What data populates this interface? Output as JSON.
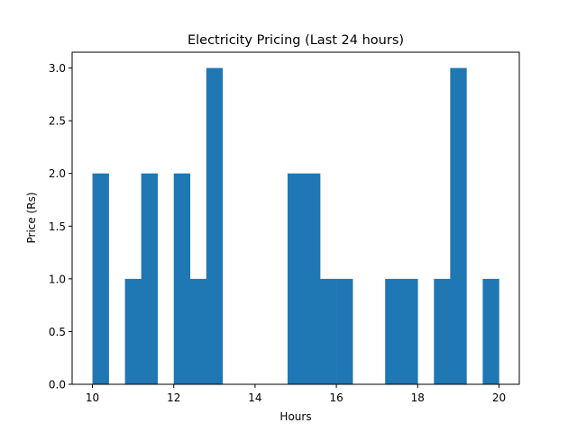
{
  "chart_data": {
    "type": "bar",
    "title": "Electricity Pricing (Last 24 hours)",
    "xlabel": "Hours",
    "ylabel": "Price (Rs)",
    "xlim": [
      9.5,
      20.5
    ],
    "ylim": [
      0,
      3.15
    ],
    "bar_color": "#1f77b4",
    "bin_width": 0.4,
    "bin_edges": [
      10.0,
      10.4,
      10.8,
      11.2,
      11.6,
      12.0,
      12.4,
      12.8,
      13.2,
      13.6,
      14.0,
      14.4,
      14.8,
      15.2,
      15.6,
      16.0,
      16.4,
      16.8,
      17.2,
      17.6,
      18.0,
      18.4,
      18.8,
      19.2,
      19.6,
      20.0
    ],
    "values": [
      2,
      0,
      1,
      2,
      0,
      2,
      1,
      3,
      0,
      0,
      0,
      0,
      2,
      2,
      1,
      1,
      0,
      0,
      1,
      1,
      0,
      1,
      3,
      0,
      1
    ],
    "x_ticks": [
      10,
      12,
      14,
      16,
      18,
      20
    ],
    "y_ticks": [
      "0.0",
      "0.5",
      "1.0",
      "1.5",
      "2.0",
      "2.5",
      "3.0"
    ]
  }
}
